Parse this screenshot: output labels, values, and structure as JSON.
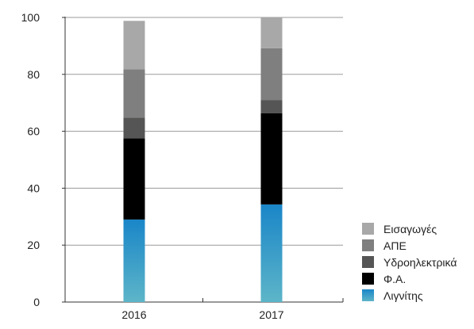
{
  "chart_data": {
    "type": "bar",
    "stacked": true,
    "categories": [
      "2016",
      "2017"
    ],
    "ylim": [
      0,
      100
    ],
    "yticks": [
      0,
      20,
      40,
      60,
      80,
      100
    ],
    "grid": true,
    "legend_position": "right",
    "series": [
      {
        "name": "Λιγνίτης",
        "values": [
          29,
          34.3
        ],
        "color": "#1a86c8",
        "color_low": "#5db5c8"
      },
      {
        "name": "Φ.Α.",
        "values": [
          28.5,
          32
        ],
        "color": "#000000"
      },
      {
        "name": "Υδροηλεκτρικά",
        "values": [
          7.3,
          4.7
        ],
        "color": "#555555"
      },
      {
        "name": "ΑΠΕ",
        "values": [
          17,
          18.2
        ],
        "color": "#7f7f80"
      },
      {
        "name": "Εισαγωγές",
        "values": [
          17,
          10.8
        ],
        "color": "#a8a8a8"
      }
    ]
  }
}
